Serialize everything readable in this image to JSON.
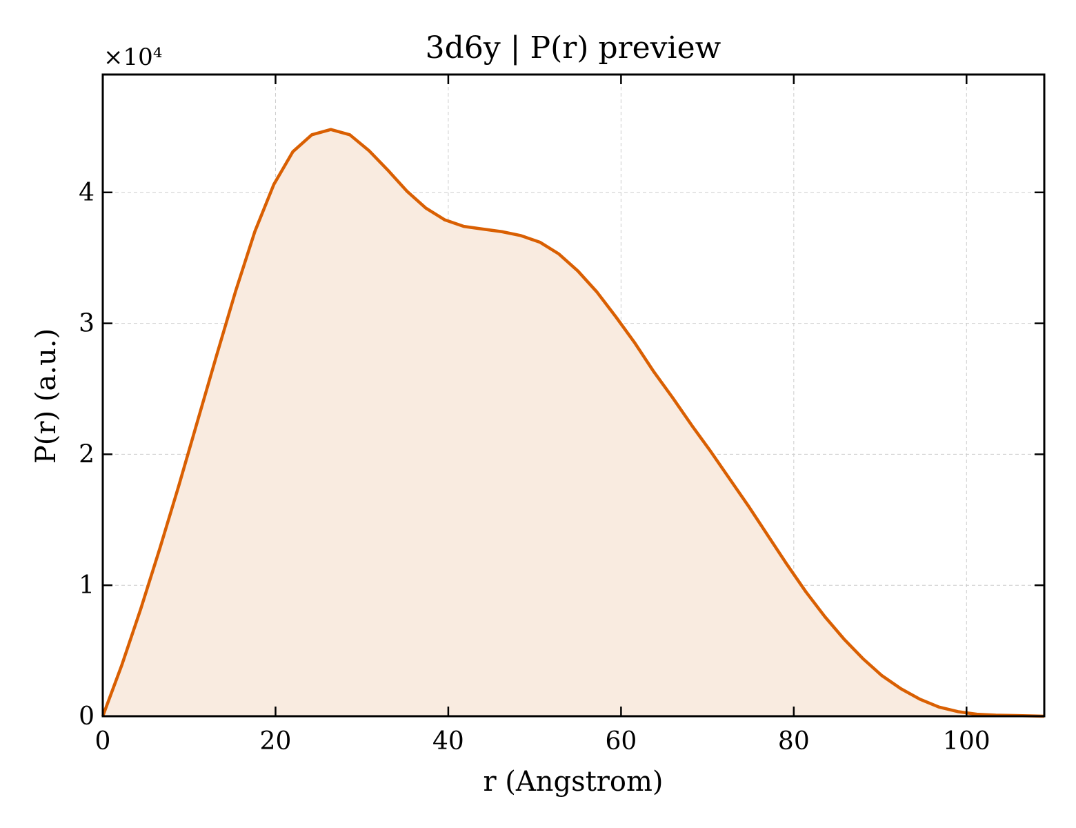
{
  "chart_data": {
    "type": "area",
    "title": "3d6y | P(r) preview",
    "xlabel": "r (Angstrom)",
    "ylabel": "P(r) (a.u.)",
    "y_offset_label": "×10⁴",
    "xlim": [
      0,
      109
    ],
    "ylim": [
      0,
      4.9
    ],
    "x_ticks": [
      0,
      20,
      40,
      60,
      80,
      100
    ],
    "y_ticks": [
      0,
      1,
      2,
      3,
      4
    ],
    "grid": true,
    "line_color": "#d95f02",
    "fill_color": "#f9ebe0",
    "series": [
      {
        "x": [
          0,
          2.2,
          4.4,
          6.6,
          8.8,
          11,
          13.2,
          15.4,
          17.6,
          19.8,
          22,
          24.2,
          26.4,
          28.6,
          30.8,
          33,
          35.2,
          37.4,
          39.6,
          41.8,
          44,
          46.2,
          48.4,
          50.6,
          52.8,
          55,
          57.2,
          59.4,
          61.6,
          63.8,
          66,
          68.2,
          70.4,
          72.6,
          74.8,
          77,
          79.2,
          81.4,
          83.6,
          85.8,
          88,
          90.2,
          92.4,
          94.6,
          96.8,
          99,
          101.2,
          103.4,
          105.6,
          107.8,
          109
        ],
        "values": [
          0,
          0.39,
          0.82,
          1.28,
          1.76,
          2.26,
          2.76,
          3.25,
          3.7,
          4.06,
          4.31,
          4.44,
          4.48,
          4.44,
          4.32,
          4.17,
          4.01,
          3.88,
          3.79,
          3.74,
          3.72,
          3.7,
          3.67,
          3.62,
          3.53,
          3.4,
          3.24,
          3.05,
          2.85,
          2.63,
          2.43,
          2.22,
          2.02,
          1.81,
          1.6,
          1.38,
          1.16,
          0.95,
          0.76,
          0.59,
          0.44,
          0.31,
          0.21,
          0.13,
          0.07,
          0.035,
          0.015,
          0.008,
          0.005,
          0.002,
          0
        ]
      }
    ]
  }
}
